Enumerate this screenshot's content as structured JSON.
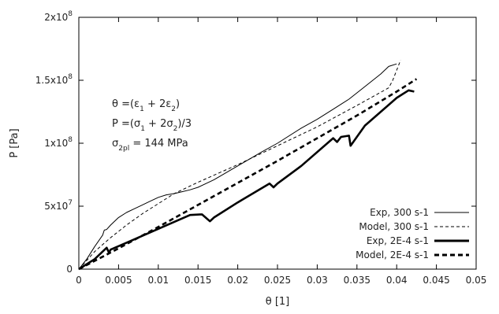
{
  "chart_data": {
    "type": "line",
    "title": "",
    "xlabel": "θ [1]",
    "ylabel": "P [Pa]",
    "xlim": [
      0,
      0.05
    ],
    "ylim": [
      0,
      200000000
    ],
    "x_ticks": [
      {
        "v": 0,
        "label": "0"
      },
      {
        "v": 0.005,
        "label": "0.005"
      },
      {
        "v": 0.01,
        "label": "0.01"
      },
      {
        "v": 0.015,
        "label": "0.015"
      },
      {
        "v": 0.02,
        "label": "0.02"
      },
      {
        "v": 0.025,
        "label": "0.025"
      },
      {
        "v": 0.03,
        "label": "0.03"
      },
      {
        "v": 0.035,
        "label": "0.035"
      },
      {
        "v": 0.04,
        "label": "0.04"
      },
      {
        "v": 0.045,
        "label": "0.045"
      },
      {
        "v": 0.05,
        "label": "0.05"
      }
    ],
    "y_ticks": [
      {
        "v": 0,
        "base": "0",
        "exp": ""
      },
      {
        "v": 50000000,
        "base": "5x10",
        "exp": "7"
      },
      {
        "v": 100000000,
        "base": "1x10",
        "exp": "8"
      },
      {
        "v": 150000000,
        "base": "1.5x10",
        "exp": "8"
      },
      {
        "v": 200000000,
        "base": "2x10",
        "exp": "8"
      }
    ],
    "grid": false,
    "legend_position": "bottom-right",
    "annotations": {
      "theta_def": {
        "main": "θ =(ε",
        "s1": "1",
        "mid": " + 2ε",
        "s2": "2",
        "end": ")"
      },
      "p_def": {
        "main": "P =(σ",
        "s1": "1",
        "mid": " + 2σ",
        "s2": "2",
        "end": ")/3"
      },
      "sigma_def": {
        "main": "σ",
        "sub": "2pl",
        "end": " = 144 MPa"
      }
    },
    "series": [
      {
        "name": "Exp, 300 s-1",
        "style": "thin-solid",
        "x": [
          0,
          0.001,
          0.002,
          0.003,
          0.0032,
          0.0035,
          0.004,
          0.005,
          0.006,
          0.007,
          0.008,
          0.009,
          0.01,
          0.011,
          0.012,
          0.013,
          0.014,
          0.015,
          0.017,
          0.02,
          0.023,
          0.025,
          0.028,
          0.03,
          0.032,
          0.034,
          0.036,
          0.038,
          0.039,
          0.04
        ],
        "y": [
          0,
          8000000,
          18000000,
          27000000,
          31000000,
          31500000,
          35000000,
          41000000,
          45000000,
          48000000,
          51000000,
          54000000,
          57000000,
          59000000,
          60000000,
          61500000,
          63000000,
          65000000,
          71000000,
          82000000,
          93000000,
          100000000,
          112000000,
          119000000,
          127000000,
          135000000,
          145000000,
          155000000,
          161000000,
          163000000
        ]
      },
      {
        "name": "Model, 300 s-1",
        "style": "thin-dashed",
        "x": [
          0,
          0.002,
          0.004,
          0.006,
          0.008,
          0.01,
          0.012,
          0.015,
          0.02,
          0.025,
          0.03,
          0.035,
          0.037,
          0.039,
          0.0395,
          0.0405
        ],
        "y": [
          0,
          14000000,
          25000000,
          35000000,
          44000000,
          52000000,
          60000000,
          69000000,
          83000000,
          98000000,
          113000000,
          130000000,
          137000000,
          144000000,
          150000000,
          166000000
        ]
      },
      {
        "name": "Exp, 2E-4 s-1",
        "style": "thick-solid",
        "x": [
          0,
          0.002,
          0.0035,
          0.0038,
          0.004,
          0.006,
          0.01,
          0.014,
          0.0155,
          0.0165,
          0.017,
          0.02,
          0.024,
          0.0245,
          0.025,
          0.028,
          0.032,
          0.0325,
          0.033,
          0.034,
          0.0342,
          0.036,
          0.04,
          0.0415,
          0.0422
        ],
        "y": [
          0,
          8000000,
          17000000,
          13000000,
          15500000,
          21000000,
          32000000,
          43000000,
          43500000,
          38000000,
          41000000,
          53000000,
          68000000,
          65000000,
          68000000,
          82000000,
          104000000,
          101000000,
          105000000,
          106000000,
          98000000,
          114000000,
          136000000,
          142000000,
          141000000
        ]
      },
      {
        "name": "Model, 2E-4 s-1",
        "style": "thick-dashed",
        "x": [
          0,
          0.005,
          0.01,
          0.015,
          0.02,
          0.025,
          0.03,
          0.035,
          0.04,
          0.0425
        ],
        "y": [
          0,
          16500000,
          33500000,
          51000000,
          68500000,
          86000000,
          104000000,
          122000000,
          141000000,
          151000000
        ]
      }
    ]
  }
}
